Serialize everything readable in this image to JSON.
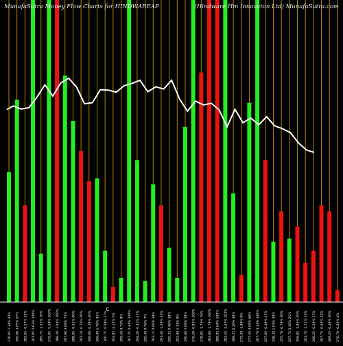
{
  "header": {
    "left": "MunafaSutra  Money Flow  Charts for HINDWAREAP",
    "right": "(Hindware   Hm   Innovaton  Ltd) MunafaSutra.com"
  },
  "colors": {
    "background": "#000000",
    "up": "#22ee22",
    "down": "#ee1111",
    "grid": "#b8860b",
    "line": "#ffffff",
    "text": "#ffffff",
    "axis": "#ffffff"
  },
  "chart_data": {
    "type": "bar",
    "title": "MunafaSutra  Money Flow  Charts for HINDWAREAP",
    "subtitle": "(Hindware   Hm   Innovaton  Ltd) MunafaSutra.com",
    "baseline_label": "C",
    "ylim": [
      0,
      100
    ],
    "bar_heights": [
      43,
      67,
      32,
      100,
      16,
      100,
      100,
      75,
      60,
      50,
      40,
      41,
      17,
      5,
      8,
      100,
      47,
      7,
      39,
      32,
      18,
      8,
      58,
      100,
      76,
      100,
      100,
      101,
      36,
      9,
      66,
      100,
      47,
      20,
      30,
      21,
      25,
      13,
      17,
      32,
      30,
      4
    ],
    "bar_colors": [
      "up",
      "up",
      "down",
      "up",
      "up",
      "up",
      "down",
      "up",
      "up",
      "down",
      "down",
      "up",
      "up",
      "down",
      "up",
      "up",
      "up",
      "up",
      "up",
      "down",
      "up",
      "up",
      "up",
      "up",
      "down",
      "down",
      "down",
      "up",
      "up",
      "down",
      "up",
      "up",
      "down",
      "up",
      "down",
      "up",
      "down",
      "down",
      "down",
      "down",
      "down",
      "down"
    ],
    "price_line": [
      70.1,
      71.4,
      70.3,
      70.8,
      74.6,
      79.1,
      75.0,
      79.8,
      81.5,
      78.3,
      72.2,
      72.6,
      77.3,
      77.2,
      76.4,
      78.8,
      79.6,
      80.8,
      76.6,
      78.4,
      77.6,
      80.8,
      74.0,
      69.5,
      73.2,
      71.8,
      72.4,
      70.0,
      63.8,
      70.2,
      65.3,
      67.0,
      64.6,
      67.5,
      64.2,
      63.1,
      61.7,
      58.0,
      55.4,
      54.5
    ],
    "price_line_start": 2,
    "x_labels": [
      "310.05 1.34% 43%",
      "300.60 3.05% 67%",
      "282.05 -0.57% 32%",
      "301.85 5.63% 100%",
      "285.75 -1.21% 16%",
      "272.05 -5.64% 100%",
      "288.20 -2.84% 100%",
      "297.90 3.09% 75%",
      "288.95 -0.61% 60%",
      "291.10 -0.76% 50%",
      "306.00 -0.28% 40%",
      "306.00 1.76% 41%",
      "300.75 -0.69% 17%",
      "302.85 -2.15% 5%",
      "309.50 0.73% 8%",
      "307.25 4.44% 100%",
      "294.20 -0.41% 47%",
      "295.40 0.76% 7%",
      "293.15 0.60% 39%",
      "291.40 -1.29% 32%",
      "295.25 0.46% 18%",
      "293.90 1.13% 8%",
      "290.60 5.09% 58%",
      "276.50 -0.85% 100%",
      "278.85 -1.75% 76%",
      "283.80 -1.79% 100%",
      "288.95 2.64% 100%",
      "281.55 -2.67% 101%",
      "289.25 6.26% 36%",
      "272.20 -1.89% 9%",
      "277.45 3.65% 66%",
      "267.70 4.13% 100%",
      "257.05 -0.49% 47%",
      "258.30 1.01% 20%",
      "255.70 -0.79% 30%",
      "257.75 0.36% 21%",
      "256.85 -1.85% 25%",
      "261.70 -1.71% 13%",
      "266.25 -0.56% 17%",
      "267.75 -0.63% 32%",
      "269.45 -0.46% 30%",
      "270.70 -0.82% 4%"
    ]
  }
}
